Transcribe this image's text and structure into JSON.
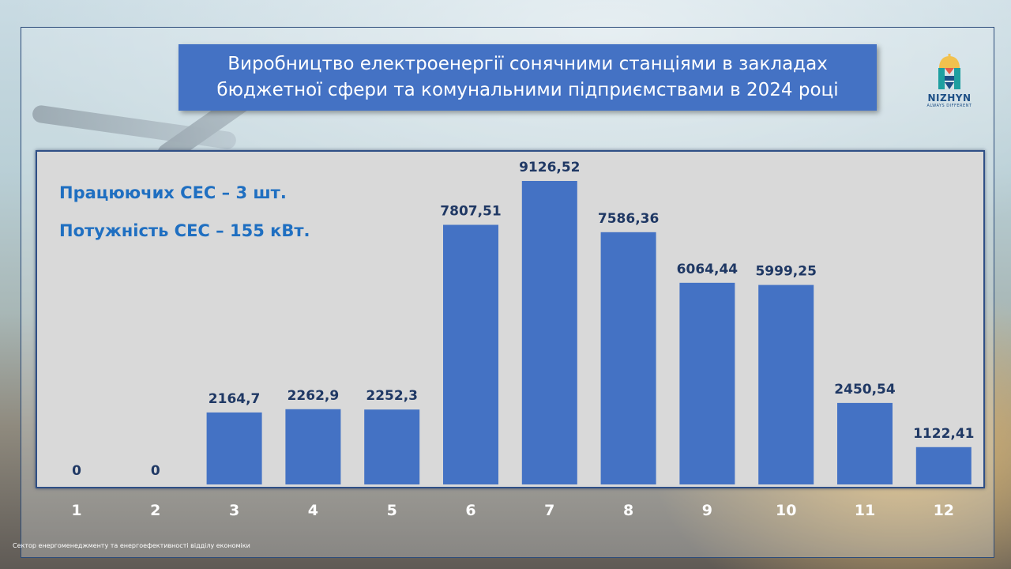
{
  "title_line1": "Виробництво електроенергії  сонячними  станціями в закладах",
  "title_line2": "бюджетної сфери та комунальними підприємствами в 2024 році",
  "info_line1": "Працюючих СЕС – 3 шт.",
  "info_line2": "Потужність СЕС – 155 кВт.",
  "logo_name": "NIZHYN",
  "logo_tagline": "ALWAYS DIFFERENT",
  "footer": "Сектор енергоменеджменту та енергоефективності відділу економіки",
  "colors": {
    "bar": "#4472c4",
    "title_bg": "#4472c4",
    "info_text": "#1f6fc1",
    "label_text": "#1f3864"
  },
  "chart_data": {
    "type": "bar",
    "categories": [
      "1",
      "2",
      "3",
      "4",
      "5",
      "6",
      "7",
      "8",
      "9",
      "10",
      "11",
      "12"
    ],
    "values": [
      0,
      0,
      2164.7,
      2262.9,
      2252.3,
      7807.51,
      9126.52,
      7586.36,
      6064.44,
      5999.25,
      2450.54,
      1122.41
    ],
    "data_labels": [
      "0",
      "0",
      "2164,7",
      "2262,9",
      "2252,3",
      "7807,51",
      "9126,52",
      "7586,36",
      "6064,44",
      "5999,25",
      "2450,54",
      "1122,41"
    ],
    "title": "Виробництво електроенергії  сонячними  станціями в закладах бюджетної сфери та комунальними підприємствами в 2024 році",
    "xlabel": "",
    "ylabel": "",
    "ylim": [
      0,
      9126.52
    ],
    "grid": false,
    "legend": "none"
  }
}
